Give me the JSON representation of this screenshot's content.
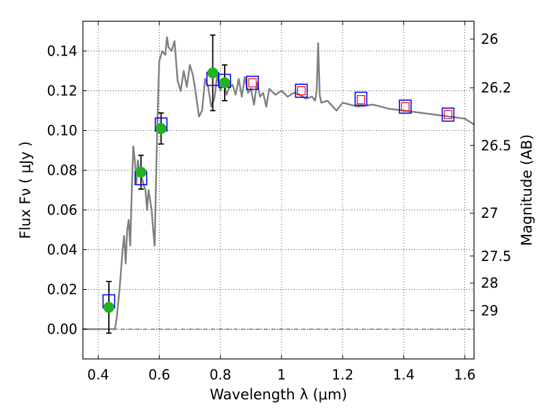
{
  "chart_data": {
    "type": "line",
    "title": "",
    "xlabel": "Wavelength  λ (μm)",
    "ylabel": "Flux  Fν  ( μJy )",
    "ylabel_right": "Magnitude (AB)",
    "xlim": [
      0.35,
      1.63
    ],
    "ylim": [
      -0.015,
      0.155
    ],
    "x_ticks": [
      0.4,
      0.6,
      0.8,
      1,
      1.2,
      1.4,
      1.6
    ],
    "x_tick_labels": [
      "0.4",
      "0.6",
      "0.8",
      "1",
      "1.2",
      "1.4",
      "1.6"
    ],
    "y_ticks": [
      0.0,
      0.02,
      0.04,
      0.06,
      0.08,
      0.1,
      0.12,
      0.14
    ],
    "y_tick_labels": [
      "0.00",
      "0.02",
      "0.04",
      "0.06",
      "0.08",
      "0.10",
      "0.12",
      "0.14"
    ],
    "right_ticks": [
      {
        "label": "26",
        "flux": 0.146
      },
      {
        "label": "26.2",
        "flux": 0.1215
      },
      {
        "label": "26.5",
        "flux": 0.0925
      },
      {
        "label": "27",
        "flux": 0.0584
      },
      {
        "label": "27.5",
        "flux": 0.0368
      },
      {
        "label": "28",
        "flux": 0.0232
      },
      {
        "label": "29",
        "flux": 0.0093
      }
    ],
    "grid": true,
    "colors": {
      "model": "#808080",
      "observed": "#22b222",
      "model_phot": "#0000ee",
      "predicted": "#ee0000",
      "errorbar": "#000000",
      "zero_line": "#000000"
    },
    "series": [
      {
        "name": "model spectrum",
        "kind": "line",
        "x": [
          0.35,
          0.43,
          0.445,
          0.455,
          0.46,
          0.465,
          0.47,
          0.475,
          0.48,
          0.485,
          0.49,
          0.495,
          0.5,
          0.505,
          0.51,
          0.515,
          0.52,
          0.525,
          0.53,
          0.535,
          0.54,
          0.545,
          0.55,
          0.555,
          0.56,
          0.565,
          0.57,
          0.575,
          0.58,
          0.585,
          0.59,
          0.595,
          0.6,
          0.61,
          0.62,
          0.625,
          0.63,
          0.64,
          0.65,
          0.66,
          0.67,
          0.68,
          0.69,
          0.7,
          0.71,
          0.72,
          0.73,
          0.74,
          0.75,
          0.76,
          0.77,
          0.78,
          0.79,
          0.8,
          0.81,
          0.82,
          0.83,
          0.84,
          0.85,
          0.86,
          0.87,
          0.88,
          0.89,
          0.9,
          0.91,
          0.92,
          0.93,
          0.94,
          0.95,
          0.96,
          0.98,
          1.0,
          1.02,
          1.04,
          1.06,
          1.08,
          1.1,
          1.11,
          1.115,
          1.12,
          1.125,
          1.13,
          1.15,
          1.18,
          1.2,
          1.25,
          1.3,
          1.35,
          1.4,
          1.45,
          1.5,
          1.55,
          1.6,
          1.63
        ],
        "y": [
          0.0,
          0.0,
          0.0,
          0.0,
          0.005,
          0.012,
          0.02,
          0.03,
          0.04,
          0.047,
          0.033,
          0.05,
          0.055,
          0.042,
          0.07,
          0.092,
          0.085,
          0.073,
          0.085,
          0.079,
          0.077,
          0.075,
          0.072,
          0.07,
          0.06,
          0.07,
          0.065,
          0.06,
          0.05,
          0.042,
          0.08,
          0.11,
          0.135,
          0.14,
          0.138,
          0.147,
          0.142,
          0.14,
          0.145,
          0.125,
          0.12,
          0.13,
          0.122,
          0.133,
          0.128,
          0.118,
          0.107,
          0.11,
          0.126,
          0.122,
          0.112,
          0.116,
          0.128,
          0.12,
          0.125,
          0.118,
          0.122,
          0.123,
          0.118,
          0.126,
          0.117,
          0.127,
          0.119,
          0.121,
          0.113,
          0.124,
          0.117,
          0.119,
          0.112,
          0.121,
          0.118,
          0.12,
          0.117,
          0.119,
          0.118,
          0.116,
          0.117,
          0.115,
          0.12,
          0.144,
          0.118,
          0.114,
          0.115,
          0.11,
          0.114,
          0.112,
          0.113,
          0.111,
          0.11,
          0.109,
          0.108,
          0.107,
          0.106,
          0.103
        ]
      },
      {
        "name": "observed photometry",
        "kind": "errorbar",
        "x": [
          0.435,
          0.54,
          0.606,
          0.775,
          0.814
        ],
        "y": [
          0.011,
          0.079,
          0.101,
          0.129,
          0.124
        ],
        "yerr": [
          0.013,
          0.0085,
          0.0078,
          0.019,
          0.009
        ]
      },
      {
        "name": "model photometry",
        "kind": "square",
        "x": [
          0.435,
          0.54,
          0.606,
          0.775,
          0.814,
          0.905,
          1.065,
          1.26,
          1.405,
          1.545
        ],
        "y": [
          0.014,
          0.076,
          0.103,
          0.126,
          0.125,
          0.124,
          0.12,
          0.116,
          0.112,
          0.108
        ]
      },
      {
        "name": "predicted model flux",
        "kind": "small-square",
        "x": [
          0.905,
          1.065,
          1.26,
          1.405,
          1.545
        ],
        "y": [
          0.124,
          0.12,
          0.1155,
          0.112,
          0.108
        ]
      }
    ]
  }
}
